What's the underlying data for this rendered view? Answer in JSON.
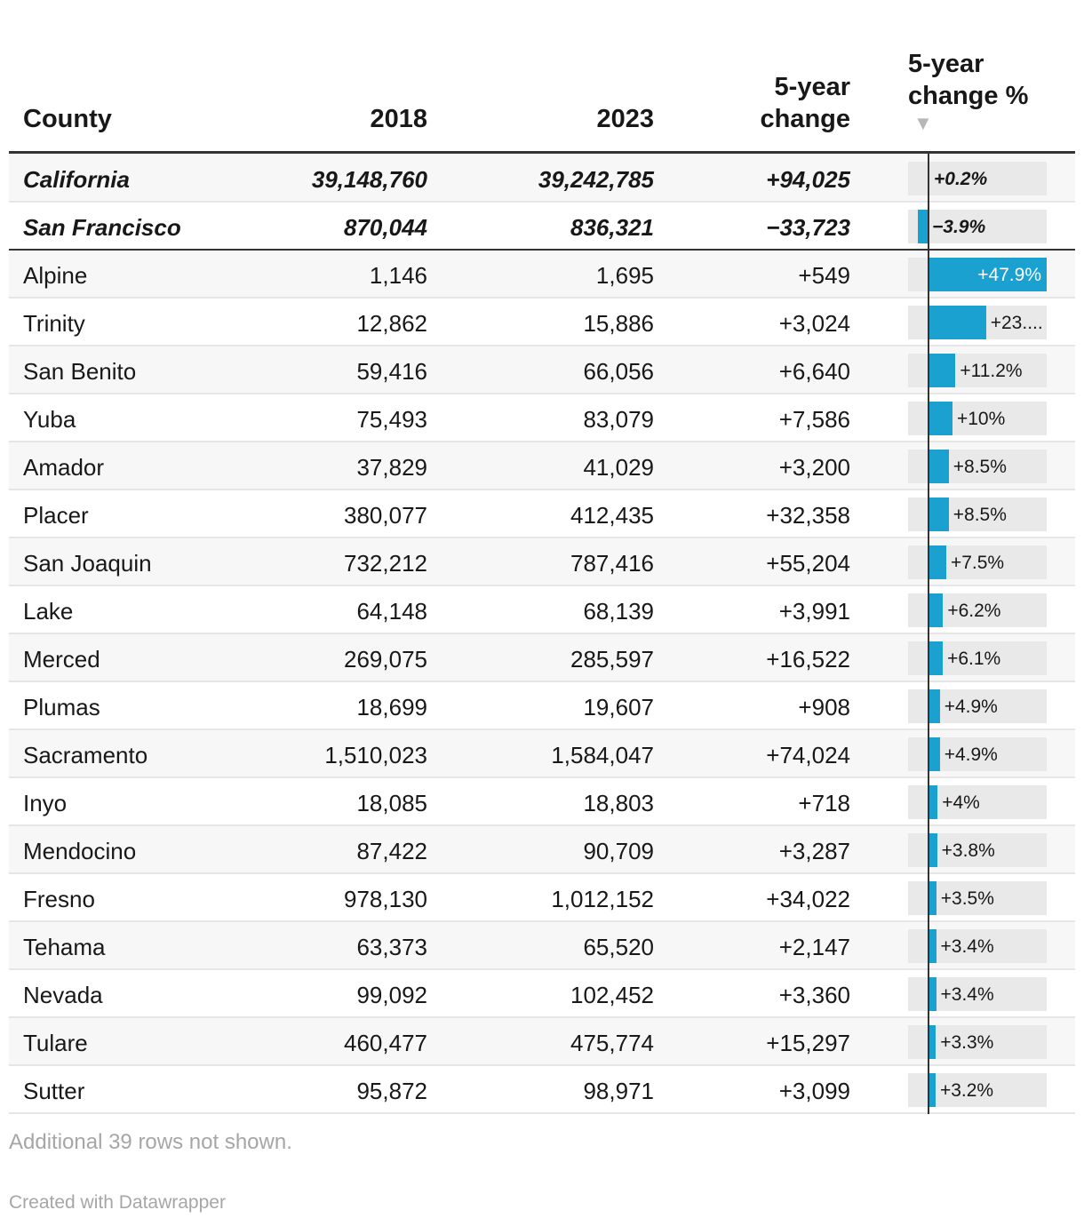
{
  "headers": {
    "county": "County",
    "y2018": "2018",
    "y2023": "2023",
    "change_line1": "5-year",
    "change_line2": "change",
    "pct_line1": "5-year",
    "pct_line2": "change %",
    "sort_indicator": "▼"
  },
  "chart_data": {
    "type": "table",
    "columns": [
      "County",
      "2018",
      "2023",
      "5-year change",
      "5-year change %"
    ],
    "bar_column": "5-year change %",
    "bar_range": [
      -3.9,
      47.9
    ],
    "sorted_by": "5-year change % (descending)",
    "pinned_rows": [
      {
        "county": "California",
        "y2018": "39,148,760",
        "y2023": "39,242,785",
        "change": "+94,025",
        "pct": 0.2,
        "pct_label": "+0.2%"
      },
      {
        "county": "San Francisco",
        "y2018": "870,044",
        "y2023": "836,321",
        "change": "−33,723",
        "pct": -3.9,
        "pct_label": "−3.9%"
      }
    ],
    "rows": [
      {
        "county": "Alpine",
        "y2018": "1,146",
        "y2023": "1,695",
        "change": "+549",
        "pct": 47.9,
        "pct_label": "+47.9%"
      },
      {
        "county": "Trinity",
        "y2018": "12,862",
        "y2023": "15,886",
        "change": "+3,024",
        "pct": 23.5,
        "pct_label": "+23...."
      },
      {
        "county": "San Benito",
        "y2018": "59,416",
        "y2023": "66,056",
        "change": "+6,640",
        "pct": 11.2,
        "pct_label": "+11.2%"
      },
      {
        "county": "Yuba",
        "y2018": "75,493",
        "y2023": "83,079",
        "change": "+7,586",
        "pct": 10,
        "pct_label": "+10%"
      },
      {
        "county": "Amador",
        "y2018": "37,829",
        "y2023": "41,029",
        "change": "+3,200",
        "pct": 8.5,
        "pct_label": "+8.5%"
      },
      {
        "county": "Placer",
        "y2018": "380,077",
        "y2023": "412,435",
        "change": "+32,358",
        "pct": 8.5,
        "pct_label": "+8.5%"
      },
      {
        "county": "San Joaquin",
        "y2018": "732,212",
        "y2023": "787,416",
        "change": "+55,204",
        "pct": 7.5,
        "pct_label": "+7.5%"
      },
      {
        "county": "Lake",
        "y2018": "64,148",
        "y2023": "68,139",
        "change": "+3,991",
        "pct": 6.2,
        "pct_label": "+6.2%"
      },
      {
        "county": "Merced",
        "y2018": "269,075",
        "y2023": "285,597",
        "change": "+16,522",
        "pct": 6.1,
        "pct_label": "+6.1%"
      },
      {
        "county": "Plumas",
        "y2018": "18,699",
        "y2023": "19,607",
        "change": "+908",
        "pct": 4.9,
        "pct_label": "+4.9%"
      },
      {
        "county": "Sacramento",
        "y2018": "1,510,023",
        "y2023": "1,584,047",
        "change": "+74,024",
        "pct": 4.9,
        "pct_label": "+4.9%"
      },
      {
        "county": "Inyo",
        "y2018": "18,085",
        "y2023": "18,803",
        "change": "+718",
        "pct": 4,
        "pct_label": "+4%"
      },
      {
        "county": "Mendocino",
        "y2018": "87,422",
        "y2023": "90,709",
        "change": "+3,287",
        "pct": 3.8,
        "pct_label": "+3.8%"
      },
      {
        "county": "Fresno",
        "y2018": "978,130",
        "y2023": "1,012,152",
        "change": "+34,022",
        "pct": 3.5,
        "pct_label": "+3.5%"
      },
      {
        "county": "Tehama",
        "y2018": "63,373",
        "y2023": "65,520",
        "change": "+2,147",
        "pct": 3.4,
        "pct_label": "+3.4%"
      },
      {
        "county": "Nevada",
        "y2018": "99,092",
        "y2023": "102,452",
        "change": "+3,360",
        "pct": 3.4,
        "pct_label": "+3.4%"
      },
      {
        "county": "Tulare",
        "y2018": "460,477",
        "y2023": "475,774",
        "change": "+15,297",
        "pct": 3.3,
        "pct_label": "+3.3%"
      },
      {
        "county": "Sutter",
        "y2018": "95,872",
        "y2023": "98,971",
        "change": "+3,099",
        "pct": 3.2,
        "pct_label": "+3.2%"
      }
    ]
  },
  "footer": {
    "note": "Additional 39 rows not shown.",
    "credit": "Created with Datawrapper"
  },
  "colors": {
    "bar": "#1aa1d0",
    "bar_bg": "#e9e9e9",
    "rule": "#333333"
  }
}
